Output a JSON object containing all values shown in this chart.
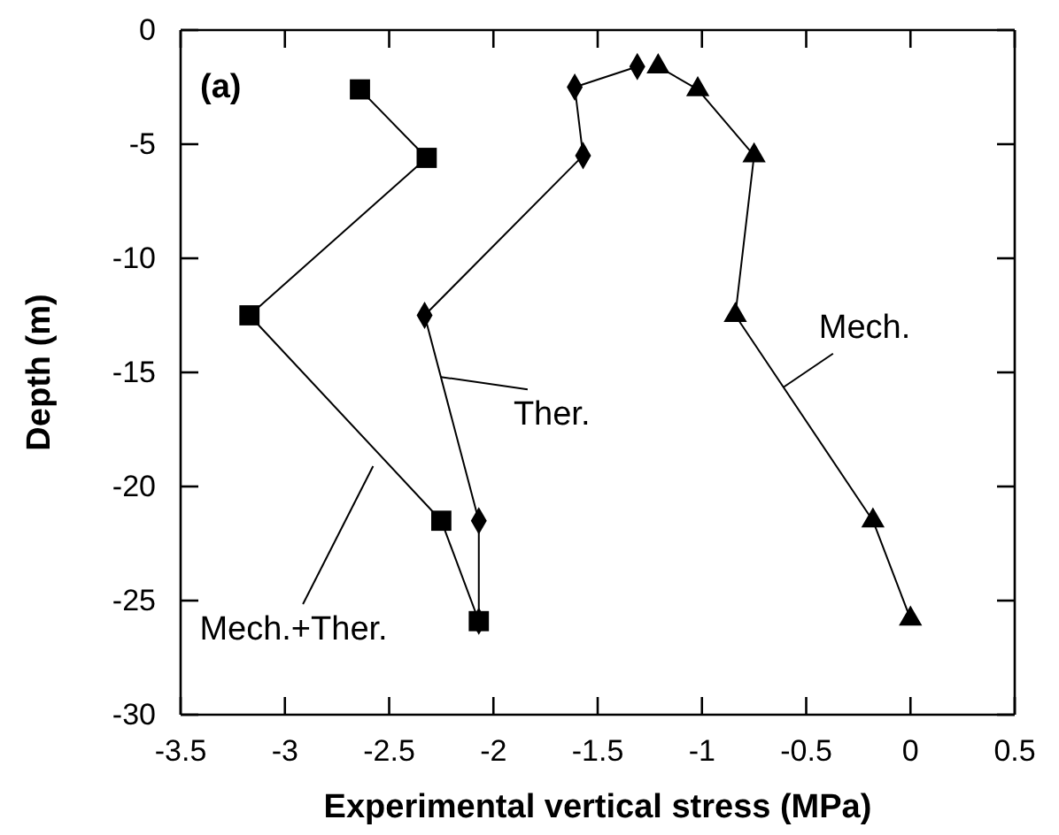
{
  "chart_data": {
    "type": "line",
    "title": "(a)",
    "xlabel": "Experimental vertical stress (MPa)",
    "ylabel": "Depth (m)",
    "xlim": [
      -3.5,
      0.5
    ],
    "xticks": [
      -3.5,
      -3,
      -2.5,
      -2,
      -1.5,
      -1,
      -0.5,
      0,
      0.5
    ],
    "ylim": [
      -30,
      0
    ],
    "yticks": [
      -30,
      -25,
      -20,
      -15,
      -10,
      -5,
      0
    ],
    "grid": false,
    "line_style": "solid",
    "series": [
      {
        "name": "Mech.+Ther.",
        "color": "#000000",
        "marker": "square",
        "x": [
          -2.64,
          -2.32,
          -3.17,
          -2.25,
          -2.07
        ],
        "values": [
          -2.6,
          -5.6,
          -12.5,
          -21.5,
          -25.9
        ]
      },
      {
        "name": "Ther.",
        "color": "#000000",
        "marker": "diamond",
        "x": [
          -1.31,
          -1.61,
          -1.57,
          -2.33,
          -2.07,
          -2.07
        ],
        "values": [
          -1.6,
          -2.5,
          -5.5,
          -12.5,
          -21.5,
          -25.9
        ]
      },
      {
        "name": "Mech.",
        "color": "#000000",
        "marker": "triangle",
        "x": [
          -1.21,
          -1.02,
          -0.75,
          -0.84,
          -0.18,
          0
        ],
        "values": [
          -1.6,
          -2.6,
          -5.5,
          -12.5,
          -21.5,
          -25.8
        ]
      }
    ]
  }
}
